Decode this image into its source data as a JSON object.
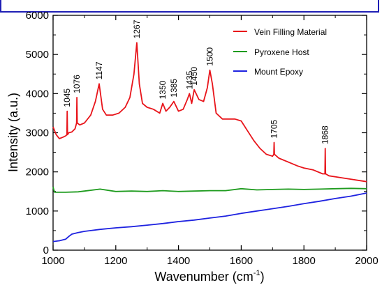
{
  "chart_data": {
    "type": "line",
    "xlabel": "Wavenumber (cm",
    "xlabel_sup": "-1",
    "xlabel_suffix": ")",
    "ylabel": "Intensity (a.u.)",
    "xlim": [
      1000,
      2000
    ],
    "ylim": [
      0,
      6000
    ],
    "x_ticks": [
      "1000",
      "1200",
      "1400",
      "1600",
      "1800",
      "2000"
    ],
    "y_ticks": [
      "0",
      "1000",
      "2000",
      "3000",
      "4000",
      "5000",
      "6000"
    ],
    "grid": false,
    "legend_position": "top-right",
    "series": [
      {
        "name": "Vein Filling Material",
        "color": "#e8141a",
        "x": [
          1000,
          1010,
          1020,
          1030,
          1040,
          1044,
          1045,
          1046,
          1050,
          1060,
          1070,
          1075,
          1076,
          1077,
          1085,
          1100,
          1120,
          1135,
          1147,
          1158,
          1170,
          1190,
          1210,
          1230,
          1245,
          1258,
          1267,
          1275,
          1285,
          1300,
          1320,
          1340,
          1350,
          1360,
          1372,
          1385,
          1400,
          1415,
          1428,
          1435,
          1442,
          1450,
          1465,
          1480,
          1492,
          1500,
          1508,
          1520,
          1540,
          1560,
          1580,
          1600,
          1620,
          1640,
          1660,
          1680,
          1700,
          1704,
          1705,
          1706,
          1720,
          1750,
          1780,
          1800,
          1830,
          1860,
          1867,
          1868,
          1869,
          1880,
          1920,
          1960,
          2000
        ],
        "values": [
          3150,
          2950,
          2850,
          2880,
          2920,
          2950,
          3550,
          2950,
          3000,
          3020,
          3100,
          3250,
          3900,
          3250,
          3200,
          3250,
          3450,
          3800,
          4250,
          3600,
          3450,
          3450,
          3500,
          3650,
          3900,
          4500,
          5300,
          4250,
          3750,
          3650,
          3600,
          3500,
          3750,
          3550,
          3650,
          3800,
          3550,
          3600,
          3850,
          4000,
          3750,
          4100,
          3850,
          3800,
          4150,
          4600,
          4250,
          3500,
          3350,
          3350,
          3350,
          3300,
          3050,
          2800,
          2600,
          2450,
          2400,
          2450,
          2750,
          2450,
          2350,
          2250,
          2150,
          2100,
          2050,
          1950,
          1950,
          2600,
          1950,
          1900,
          1850,
          1800,
          1750
        ]
      },
      {
        "name": "Pyroxene Host",
        "color": "#1e9b1e",
        "x": [
          1000,
          1002,
          1005,
          1040,
          1080,
          1100,
          1150,
          1200,
          1250,
          1300,
          1350,
          1400,
          1450,
          1500,
          1550,
          1600,
          1650,
          1700,
          1750,
          1800,
          1850,
          1900,
          1950,
          2000
        ],
        "values": [
          1620,
          1550,
          1480,
          1480,
          1490,
          1510,
          1560,
          1500,
          1510,
          1500,
          1520,
          1500,
          1510,
          1520,
          1520,
          1570,
          1540,
          1550,
          1560,
          1550,
          1560,
          1570,
          1580,
          1570
        ]
      },
      {
        "name": "Mount Epoxy",
        "color": "#1e22e0",
        "x": [
          1000,
          1020,
          1040,
          1050,
          1060,
          1080,
          1100,
          1150,
          1200,
          1250,
          1300,
          1350,
          1400,
          1450,
          1500,
          1550,
          1600,
          1650,
          1700,
          1750,
          1800,
          1850,
          1900,
          1950,
          2000
        ],
        "values": [
          220,
          240,
          280,
          350,
          410,
          450,
          480,
          530,
          570,
          600,
          640,
          680,
          730,
          770,
          820,
          870,
          940,
          1000,
          1060,
          1120,
          1190,
          1250,
          1320,
          1380,
          1460
        ]
      }
    ],
    "annotations": [
      {
        "text": "1045",
        "x": 1045,
        "y": 3550
      },
      {
        "text": "1076",
        "x": 1076,
        "y": 3900
      },
      {
        "text": "1147",
        "x": 1147,
        "y": 4250
      },
      {
        "text": "1267",
        "x": 1267,
        "y": 5300
      },
      {
        "text": "1350",
        "x": 1350,
        "y": 3750
      },
      {
        "text": "1385",
        "x": 1385,
        "y": 3800
      },
      {
        "text": "1435",
        "x": 1435,
        "y": 4000
      },
      {
        "text": "1450",
        "x": 1450,
        "y": 4100
      },
      {
        "text": "1500",
        "x": 1500,
        "y": 4600
      },
      {
        "text": "1705",
        "x": 1705,
        "y": 2750
      },
      {
        "text": "1868",
        "x": 1868,
        "y": 2600
      }
    ]
  }
}
